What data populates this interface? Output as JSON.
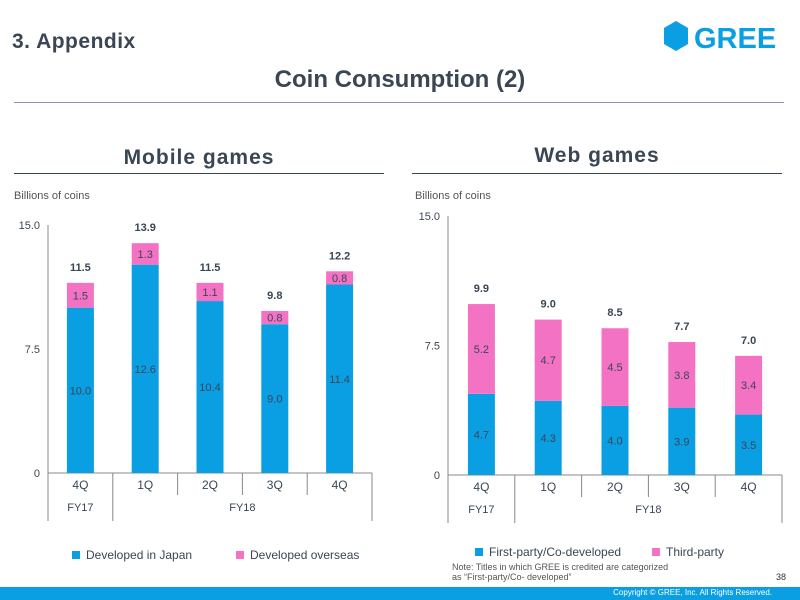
{
  "header": {
    "section": "3. Appendix",
    "logo_text": "GREE",
    "title": "Coin Consumption (2)"
  },
  "colors": {
    "japan": "#0a9ee3",
    "overseas": "#f472c4",
    "text": "#3a4654"
  },
  "chart_data": [
    {
      "type": "bar",
      "stacked": true,
      "title": "Mobile games",
      "ylabel": "Billions of coins",
      "ylim": [
        0,
        15
      ],
      "yticks": [
        "0",
        "7.5",
        "15.0"
      ],
      "categories": [
        "4Q",
        "1Q",
        "2Q",
        "3Q",
        "4Q"
      ],
      "groups": [
        {
          "label": "FY17",
          "span": 1
        },
        {
          "label": "FY18",
          "span": 4
        }
      ],
      "series": [
        {
          "name": "Developed in Japan",
          "values": [
            10.0,
            12.6,
            10.4,
            9.0,
            11.4
          ],
          "labels": [
            "10.0",
            "12.6",
            "10.4",
            "9.0",
            "11.4"
          ]
        },
        {
          "name": "Developed overseas",
          "values": [
            1.5,
            1.3,
            1.1,
            0.8,
            0.8
          ],
          "labels": [
            "1.5",
            "1.3",
            "1.1",
            "0.8",
            "0.8"
          ]
        }
      ],
      "totals": [
        "11.5",
        "13.9",
        "11.5",
        "9.8",
        "12.2"
      ]
    },
    {
      "type": "bar",
      "stacked": true,
      "title": "Web games",
      "ylabel": "Billions of coins",
      "ylim": [
        0,
        15
      ],
      "yticks": [
        "0",
        "7.5",
        "15.0"
      ],
      "categories": [
        "4Q",
        "1Q",
        "2Q",
        "3Q",
        "4Q"
      ],
      "groups": [
        {
          "label": "FY17",
          "span": 1
        },
        {
          "label": "FY18",
          "span": 4
        }
      ],
      "series": [
        {
          "name": "First-party/Co-developed",
          "values": [
            4.7,
            4.3,
            4.0,
            3.9,
            3.5
          ],
          "labels": [
            "4.7",
            "4.3",
            "4.0",
            "3.9",
            "3.5"
          ]
        },
        {
          "name": "Third-party",
          "values": [
            5.2,
            4.7,
            4.5,
            3.8,
            3.4
          ],
          "labels": [
            "5.2",
            "4.7",
            "4.5",
            "3.8",
            "3.4"
          ]
        }
      ],
      "totals": [
        "9.9",
        "9.0",
        "8.5",
        "7.7",
        "7.0"
      ]
    }
  ],
  "note": {
    "line1": "Note: Titles in which GREE is credited are categorized",
    "line2": "as “First-party/Co- developed”"
  },
  "footer": {
    "page_number": "38",
    "copyright": "Copyright © GREE, Inc. All Rights Reserved."
  }
}
